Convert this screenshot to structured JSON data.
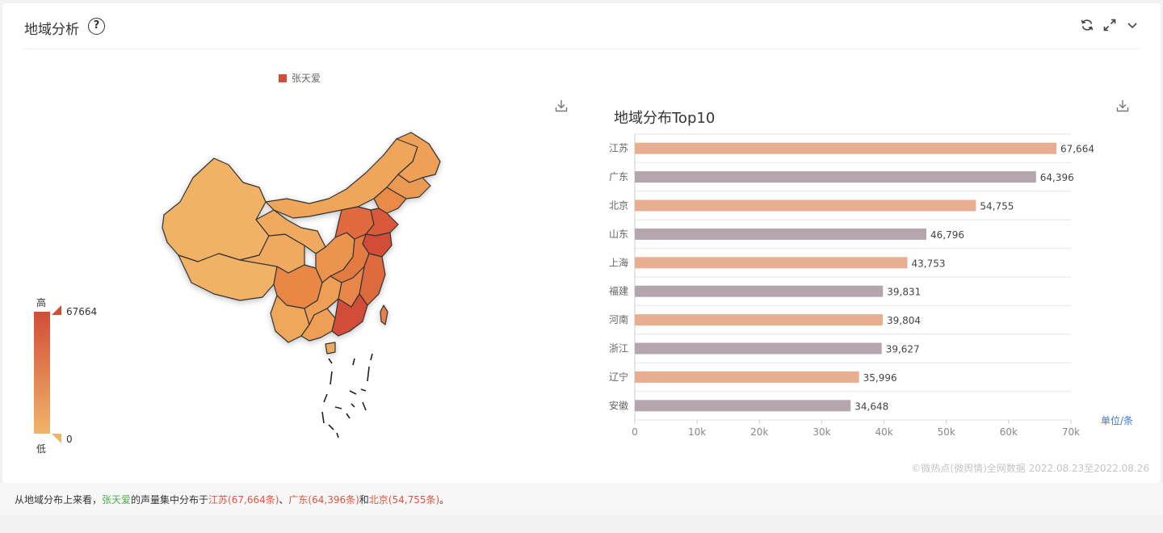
{
  "header": {
    "title": "地域分析",
    "help_glyph": "?",
    "icons": [
      "refresh-icon",
      "expand-icon",
      "chevron-down-icon"
    ]
  },
  "map": {
    "legend_series": "张天爱",
    "legend_color": "#d24d37",
    "visual_map": {
      "high_label": "高",
      "low_label": "低",
      "max": "67664",
      "min": "0",
      "colors": [
        "#f0b46b",
        "#d24d37"
      ]
    }
  },
  "chart_data": {
    "type": "bar",
    "orientation": "horizontal",
    "title": "地域分布Top10",
    "categories": [
      "江苏",
      "广东",
      "北京",
      "山东",
      "上海",
      "福建",
      "河南",
      "浙江",
      "辽宁",
      "安徽"
    ],
    "values": [
      67664,
      64396,
      54755,
      46796,
      43753,
      39831,
      39804,
      39627,
      35996,
      34648
    ],
    "value_labels": [
      "67,664",
      "64,396",
      "54,755",
      "46,796",
      "43,753",
      "39,831",
      "39,804",
      "39,627",
      "35,996",
      "34,648"
    ],
    "xlim": [
      0,
      70000
    ],
    "xticks": [
      "0",
      "10k",
      "20k",
      "30k",
      "40k",
      "50k",
      "60k",
      "70k"
    ],
    "bar_colors": [
      "#e8ae92",
      "#b5a6ae"
    ],
    "unit": "单位/条",
    "grid": true
  },
  "source": "©微热点(微舆情)全网数据 2022.08.23至2022.08.26",
  "summary": {
    "prefix": "从地域分布上来看，",
    "name": "张天爱",
    "middle": "的声量集中分布于",
    "item1": "江苏(67,664条)",
    "sep": "、",
    "item2": "广东(64,396条)",
    "and": "和",
    "item3": "北京(54,755条)",
    "end": "。"
  }
}
